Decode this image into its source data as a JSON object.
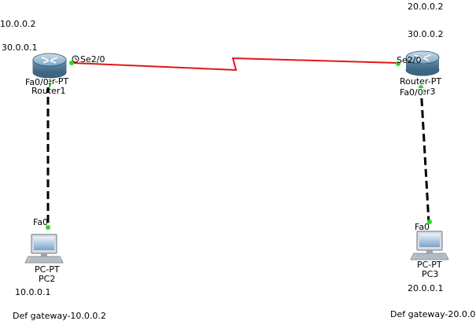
{
  "labels": {
    "r1_ip_fa": "10.0.0.2",
    "r1_ip_se": "30.0.0.1",
    "r3_ip_fa": "20.0.0.2",
    "r3_ip_se": "30.0.0.2",
    "r1_port_se": "Se2/0",
    "r3_port_se": "Se2/0",
    "r1_port_fa": "Fa0/0",
    "r3_port_fa": "Fa0/0",
    "pc2_port": "Fa0",
    "pc3_port": "Fa0",
    "r1_model": "Router-PT",
    "r1_name": "Router1",
    "r3_model": "Router-PT",
    "r3_name": "Router3",
    "pc2_model": "PC-PT",
    "pc2_name": "PC2",
    "pc3_model": "PC-PT",
    "pc3_name": "PC3",
    "pc2_ip": "10.0.0.1",
    "pc3_ip": "20.0.0.1",
    "pc2_gateway": "Def gateway-10.0.0.2",
    "pc3_gateway": "Def gateway-20.0.0.2"
  },
  "colors": {
    "serial_link": "#e01818",
    "ethernet_link": "#000000",
    "port_up": "#22dd22",
    "router_body": "#6f98b4"
  },
  "icons": {
    "router": "router-icon",
    "pc": "pc-icon",
    "clock": "clock-icon"
  }
}
